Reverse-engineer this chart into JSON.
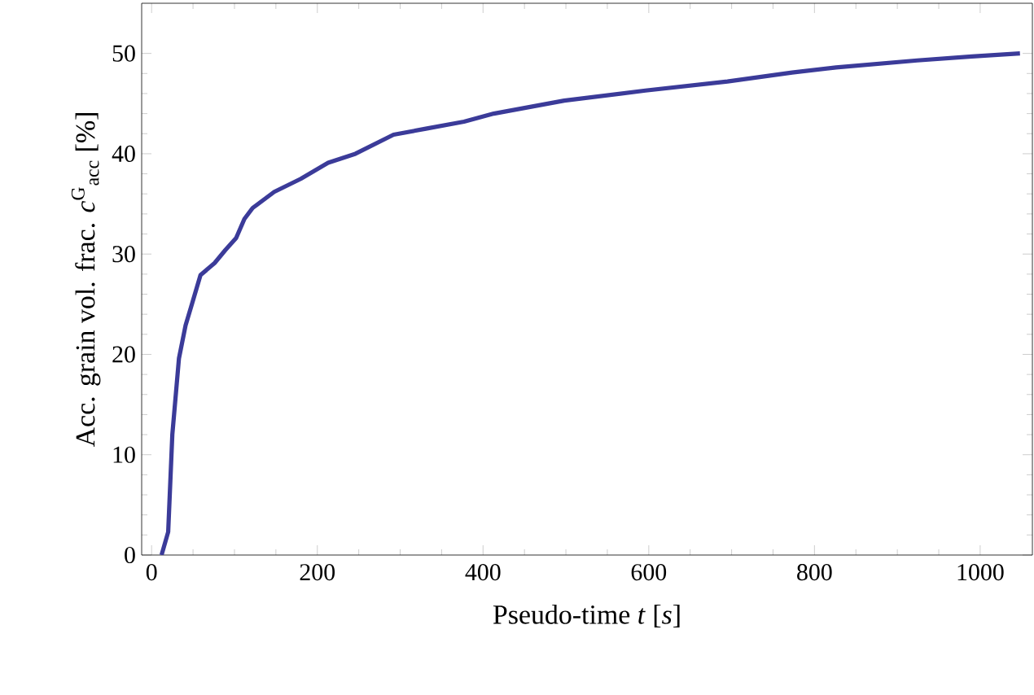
{
  "chart_data": {
    "type": "line",
    "xlabel": "Pseudo-time *t* [*s*]",
    "ylabel": "Acc. grain vol. frac. *c*$^{G}$$_{acc}$ [%]",
    "xlim": [
      -12,
      1063
    ],
    "ylim": [
      0,
      55
    ],
    "xticks": [
      0,
      200,
      400,
      600,
      800,
      1000
    ],
    "yticks": [
      0,
      10,
      20,
      30,
      40,
      50
    ],
    "grid": false,
    "marker": "none",
    "line_style": "solid",
    "series": [
      {
        "color": "#3b3b99",
        "x": [
          12,
          20,
          25,
          33,
          41,
          49,
          59,
          76,
          89,
          102,
          112,
          122,
          148,
          180,
          213,
          246,
          292,
          331,
          377,
          413,
          498,
          596,
          695,
          773,
          826,
          924,
          990,
          1048
        ],
        "values": [
          0,
          2.3,
          12.0,
          19.6,
          22.9,
          25.1,
          27.9,
          29.1,
          30.4,
          31.6,
          33.5,
          34.6,
          36.2,
          37.5,
          39.1,
          40.0,
          41.9,
          42.5,
          43.2,
          44.0,
          45.3,
          46.3,
          47.2,
          48.1,
          48.6,
          49.3,
          49.7,
          50.0
        ]
      }
    ]
  }
}
